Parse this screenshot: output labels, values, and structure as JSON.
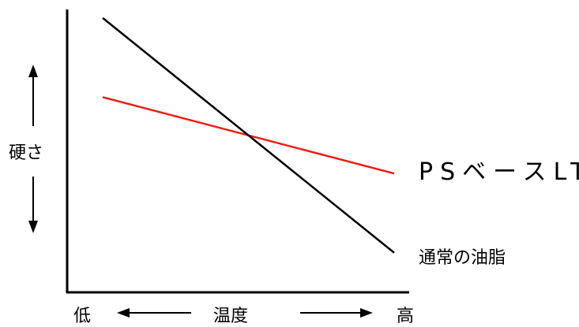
{
  "chart_data": {
    "type": "line",
    "title": "",
    "xlabel": "温度",
    "ylabel": "硬さ",
    "x_tick_labels": [
      "低",
      "高"
    ],
    "x": [
      0,
      1
    ],
    "xlim": [
      0,
      1
    ],
    "ylim": [
      0,
      1
    ],
    "grid": false,
    "series": [
      {
        "name": "PSベースLT",
        "color": "#ee1c12",
        "values": [
          0.69,
          0.42
        ]
      },
      {
        "name": "通常の油脂",
        "color": "#000000",
        "values": [
          0.97,
          0.14
        ]
      }
    ]
  }
}
